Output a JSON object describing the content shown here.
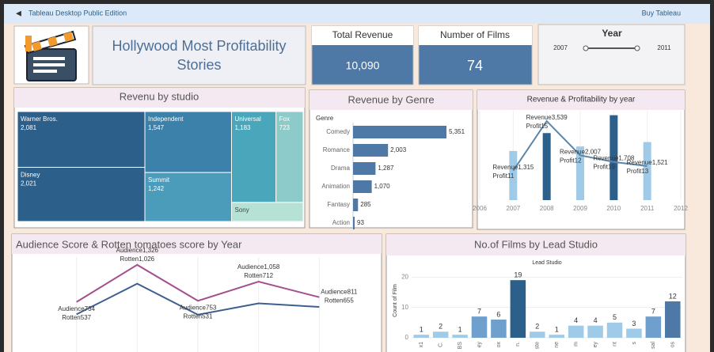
{
  "header": {
    "app": "Tableau Desktop Public Edition",
    "action": "Buy Tableau"
  },
  "title": "Hollywood Most Profitability Stories",
  "kpis": [
    {
      "label": "Total Revenue",
      "value": 10090,
      "value_label": "10,090"
    },
    {
      "label": "Number of Films",
      "value": 74
    }
  ],
  "year_filter": {
    "label": "Year",
    "min": 2007,
    "max": 2011
  },
  "chart_data": [
    {
      "type": "treemap",
      "title": "Revenu by studio",
      "categories": [
        "Warner Bros.",
        "Disney",
        "Independent",
        "Summit",
        "Universal",
        "Fox",
        "Sony"
      ],
      "values": [
        2081,
        2021,
        1547,
        1242,
        1183,
        723,
        400
      ],
      "value_labels": [
        "2,081",
        "2,021",
        "1,547",
        "1,242",
        "1,183",
        "723",
        null
      ],
      "colors": [
        "#2d5f8b",
        "#2d5f8b",
        "#3b81aa",
        "#4b9bbb",
        "#4aa6bb",
        "#8ccbc9",
        "#b6e2d5"
      ]
    },
    {
      "type": "hbar",
      "title": "Revenue by Genre",
      "axis_label": "Genre",
      "categories": [
        "Comedy",
        "Romance",
        "Drama",
        "Animation",
        "Fantasy",
        "Action"
      ],
      "values": [
        5351,
        2003,
        1287,
        1070,
        285,
        93
      ],
      "value_labels": [
        "5,351",
        "2,003",
        "1,287",
        "1,070",
        "285",
        "93"
      ],
      "color": "#4e79a7",
      "xlim": [
        0,
        6800
      ]
    },
    {
      "type": "combo",
      "title": "Revenue & Profitability by year",
      "x": [
        2007,
        2008,
        2009,
        2010,
        2011
      ],
      "xlim": [
        2006,
        2012
      ],
      "xticks": [
        2006,
        2007,
        2008,
        2009,
        2010,
        2011,
        2012
      ],
      "ylim": [
        0,
        4000
      ],
      "y2lim": [
        0,
        20
      ],
      "series": [
        {
          "name": "Revenue",
          "kind": "line",
          "color": "#5b86aa",
          "values": [
            1315,
            3539,
            2007,
            1708,
            1521
          ],
          "value_labels": [
            "1,315",
            "3,539",
            "2,007",
            "1,708",
            "1,521"
          ]
        },
        {
          "name": "Profit",
          "kind": "bar",
          "axis": "y2",
          "values": [
            11,
            15,
            12,
            19,
            13
          ],
          "colors": [
            "#a0cbe8",
            "#2d5f8b",
            "#a0cbe8",
            "#2d5f8b",
            "#a0cbe8"
          ]
        }
      ]
    },
    {
      "type": "line",
      "title": "Audience Score & Rotten tomatoes score by Year",
      "categories": [
        null,
        null,
        null,
        null,
        null
      ],
      "ylim": [
        0,
        1450
      ],
      "series": [
        {
          "name": "Audience",
          "color": "#a4508f",
          "values": [
            734,
            1326,
            753,
            1058,
            811
          ],
          "value_labels": [
            "734",
            "1,326",
            "753",
            "1,058",
            "811"
          ]
        },
        {
          "name": "Rotten",
          "color": "#3d5f8f",
          "values": [
            537,
            1026,
            531,
            712,
            655
          ],
          "value_labels": [
            "537",
            "1,026",
            "531",
            "712",
            "655"
          ]
        }
      ]
    },
    {
      "type": "bar",
      "title": "No.of Films by Lead Studio",
      "subtitle": "Lead Studio",
      "y_label": "Count of Film",
      "categories": [
        "x1",
        "C.",
        "BS",
        "ey",
        "ox",
        "n.",
        "ste",
        "ne",
        "m",
        "ey",
        "nt",
        "s",
        "sal",
        "os"
      ],
      "values": [
        1,
        2,
        1,
        7,
        6,
        19,
        2,
        1,
        4,
        4,
        5,
        3,
        7,
        12
      ],
      "colors": [
        "#a0cbe8",
        "#a0cbe8",
        "#a0cbe8",
        "#6f9fcc",
        "#6f9fcc",
        "#2d5f8b",
        "#a0cbe8",
        "#a0cbe8",
        "#a0cbe8",
        "#a0cbe8",
        "#a0cbe8",
        "#a0cbe8",
        "#6f9fcc",
        "#4e79a7"
      ],
      "ylim": [
        0,
        24
      ],
      "yticks": [
        0,
        10,
        20
      ],
      "grid": true
    }
  ]
}
